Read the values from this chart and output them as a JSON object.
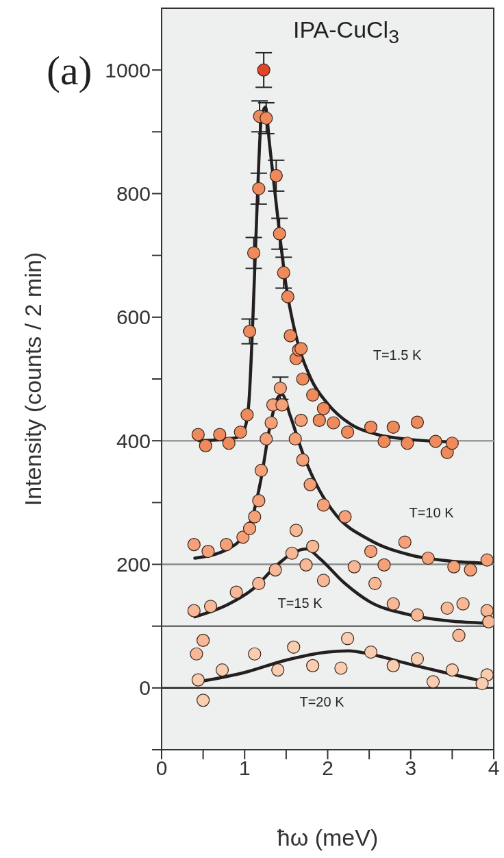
{
  "chart_data": {
    "type": "scatter",
    "xlabel": "ħω (meV)",
    "ylabel": "Intensity (counts / 2 min)",
    "xlim": [
      0,
      4
    ],
    "xticks": [
      0,
      {
        "value": 0.5,
        "label": null
      },
      1,
      {
        "value": 1.5,
        "label": null
      },
      2,
      {
        "value": 2.5,
        "label": null
      },
      3,
      {
        "value": 3.5,
        "label": null
      },
      4
    ],
    "ylim": [
      -100,
      1100
    ],
    "yticks": [
      {
        "value": -100,
        "label": null
      },
      0,
      {
        "value": 100,
        "label": null
      },
      200,
      {
        "value": 300,
        "label": null
      },
      400,
      {
        "value": 500,
        "label": null
      },
      600,
      {
        "value": 700,
        "label": null
      },
      800,
      {
        "value": 900,
        "label": null
      },
      1000
    ],
    "ref_lines": [
      {
        "axis": "y",
        "value": 400,
        "color": "#9a9a9a"
      },
      {
        "axis": "y",
        "value": 200,
        "color": "#8a8a8a"
      },
      {
        "axis": "y",
        "value": 100,
        "color": "#6a6a6a"
      },
      {
        "axis": "y",
        "value": 0,
        "color": "#222222"
      }
    ],
    "annotations": [
      "(a)",
      "IPA-CuCl$_{3}$",
      "T=1.5 K",
      "T=10 K",
      "T=15 K",
      "T=20 K"
    ],
    "series": [
      {
        "marker": "circle",
        "color": "#f9cdb0",
        "x": [
          0.44,
          0.5,
          0.73,
          1.12,
          1.4,
          1.59,
          1.82,
          2.16,
          2.24,
          2.52,
          2.79,
          3.08,
          3.27,
          3.5,
          3.92,
          3.86
        ],
        "values": [
          13,
          -20,
          29,
          55,
          29,
          66,
          36,
          32,
          80,
          58,
          36,
          47,
          10,
          29,
          21,
          7
        ]
      },
      {
        "marker": "circle",
        "color": "#f6b896",
        "x": [
          0.39,
          0.59,
          0.9,
          1.17,
          1.37,
          1.57,
          1.62,
          1.82,
          1.74,
          1.95,
          2.32,
          2.57,
          2.79,
          3.08,
          3.44,
          3.63,
          3.58,
          3.92,
          3.94,
          0.5,
          0.42
        ],
        "values": [
          125,
          132,
          155,
          169,
          191,
          218,
          255,
          229,
          199,
          174,
          196,
          169,
          136,
          118,
          129,
          136,
          85,
          125,
          107,
          77,
          55
        ]
      },
      {
        "marker": "circle",
        "color": "#f4a078",
        "x": [
          0.39,
          0.56,
          0.78,
          0.98,
          1.06,
          1.12,
          1.17,
          1.2,
          1.26,
          1.32,
          1.34,
          1.43,
          1.45,
          1.61,
          1.68,
          1.7,
          1.79,
          1.95,
          2.21,
          2.52,
          2.68,
          2.93,
          3.21,
          3.52,
          3.72,
          3.92
        ],
        "values": [
          232,
          221,
          232,
          244,
          258,
          277,
          303,
          352,
          403,
          429,
          458,
          485,
          458,
          403,
          433,
          369,
          329,
          296,
          277,
          221,
          199,
          236,
          210,
          196,
          191,
          207
        ],
        "errors": [
          null,
          null,
          null,
          null,
          null,
          null,
          null,
          null,
          null,
          null,
          null,
          18,
          null,
          null,
          null,
          null,
          null,
          null,
          null,
          null,
          null,
          null,
          null,
          null,
          null,
          null
        ]
      },
      {
        "marker": "circle",
        "color": "#ee8a5c",
        "x": [
          0.44,
          0.53,
          0.7,
          0.81,
          0.95,
          1.03,
          1.06,
          1.11,
          1.17,
          1.18,
          1.26,
          1.38,
          1.42,
          1.47,
          1.52,
          1.55,
          1.62,
          1.65,
          1.68,
          1.7,
          1.82,
          1.9,
          1.95,
          2.07,
          2.24,
          2.52,
          2.68,
          2.79,
          2.96,
          3.08,
          3.3,
          3.44,
          3.5
        ],
        "values": [
          410,
          392,
          410,
          396,
          414,
          442,
          577,
          704,
          808,
          925,
          922,
          829,
          735,
          672,
          633,
          570,
          533,
          547,
          549,
          500,
          474,
          433,
          452,
          429,
          414,
          422,
          399,
          422,
          396,
          430,
          399,
          381,
          396
        ],
        "errors": [
          null,
          null,
          null,
          null,
          null,
          null,
          20,
          25,
          25,
          25,
          25,
          25,
          25,
          25,
          null,
          null,
          null,
          null,
          null,
          null,
          null,
          null,
          null,
          null,
          null,
          null,
          null,
          null,
          null,
          null,
          null,
          null,
          null
        ]
      },
      {
        "marker": "circle",
        "color": "#e0442a",
        "x": [
          1.23
        ],
        "values": [
          1000
        ],
        "errors": [
          28
        ]
      },
      {
        "type": "line",
        "marker": "none",
        "color": "#231f20",
        "x": [
          0.45,
          0.9,
          1.0,
          1.05,
          1.1,
          1.15,
          1.2,
          1.25,
          1.3,
          1.4,
          1.5,
          1.6,
          1.8,
          2.0,
          2.3,
          2.6,
          3.0,
          3.5
        ],
        "values": [
          400,
          405,
          420,
          460,
          600,
          780,
          920,
          940,
          880,
          760,
          650,
          580,
          500,
          460,
          425,
          410,
          402,
          398
        ]
      },
      {
        "type": "line",
        "marker": "none",
        "color": "#231f20",
        "x": [
          0.4,
          0.8,
          1.0,
          1.1,
          1.2,
          1.3,
          1.4,
          1.45,
          1.55,
          1.7,
          1.9,
          2.1,
          2.5,
          3.0,
          3.5,
          3.9
        ],
        "values": [
          210,
          225,
          250,
          280,
          340,
          420,
          470,
          475,
          440,
          380,
          320,
          280,
          240,
          215,
          205,
          202
        ]
      },
      {
        "type": "line",
        "marker": "none",
        "color": "#231f20",
        "x": [
          0.4,
          0.8,
          1.1,
          1.4,
          1.6,
          1.75,
          1.9,
          2.2,
          2.5,
          3.0,
          3.5,
          3.9
        ],
        "values": [
          115,
          135,
          160,
          200,
          220,
          225,
          210,
          170,
          140,
          118,
          108,
          105
        ]
      },
      {
        "type": "line",
        "marker": "none",
        "color": "#231f20",
        "x": [
          0.45,
          1.0,
          1.5,
          2.0,
          2.25,
          2.5,
          3.0,
          3.5,
          3.9
        ],
        "values": [
          10,
          25,
          45,
          58,
          60,
          55,
          38,
          22,
          10
        ]
      }
    ]
  }
}
